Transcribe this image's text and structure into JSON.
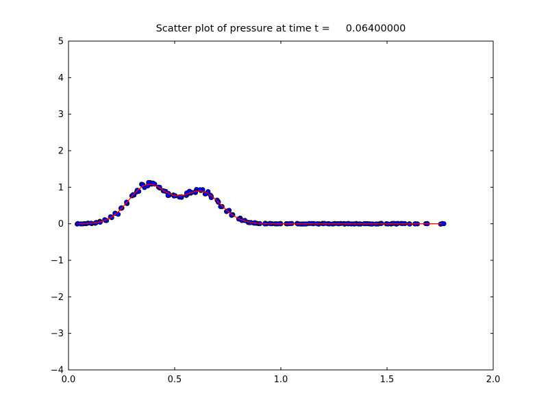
{
  "window": {
    "background": "#ffffff"
  },
  "chart_data": {
    "type": "scatter",
    "title": "Scatter plot of pressure at time t =     0.06400000",
    "xlabel": "",
    "ylabel": "",
    "grid": false,
    "legend": null,
    "xlim": [
      0.0,
      2.0
    ],
    "ylim": [
      -4,
      5
    ],
    "xticks": {
      "values": [
        0.0,
        0.5,
        1.0,
        1.5,
        2.0
      ],
      "labels": [
        "0.0",
        "0.5",
        "1.0",
        "1.5",
        "2.0"
      ]
    },
    "yticks": {
      "values": [
        -4,
        -3,
        -2,
        -1,
        0,
        1,
        2,
        3,
        4,
        5
      ],
      "labels": [
        "−4",
        "−3",
        "−2",
        "−1",
        "0",
        "1",
        "2",
        "3",
        "4",
        "5"
      ]
    },
    "marker_color": "#0000ff",
    "marker_edge_color": "#000000",
    "line_color": "#ff0000",
    "x": [
      0.05,
      0.075,
      0.1,
      0.125,
      0.15,
      0.175,
      0.2,
      0.225,
      0.25,
      0.275,
      0.3,
      0.325,
      0.35,
      0.375,
      0.4,
      0.425,
      0.45,
      0.475,
      0.5,
      0.525,
      0.55,
      0.575,
      0.6,
      0.625,
      0.65,
      0.675,
      0.7,
      0.725,
      0.75,
      0.775,
      0.8,
      0.825,
      0.85,
      0.875,
      0.9,
      0.925,
      0.95,
      0.975,
      1.0,
      1.025,
      1.05,
      1.075,
      1.1,
      1.125,
      1.15,
      1.175,
      1.2,
      1.225,
      1.25,
      1.275,
      1.3,
      1.325,
      1.35,
      1.375,
      1.4,
      1.425,
      1.45,
      1.475,
      1.5,
      1.525,
      1.55,
      1.575,
      1.6,
      1.64,
      1.69,
      1.76
    ],
    "y": [
      0.002,
      0.005,
      0.012,
      0.026,
      0.053,
      0.099,
      0.173,
      0.28,
      0.421,
      0.587,
      0.762,
      0.919,
      1.031,
      1.082,
      1.065,
      0.996,
      0.902,
      0.816,
      0.766,
      0.761,
      0.797,
      0.85,
      0.891,
      0.896,
      0.851,
      0.756,
      0.626,
      0.482,
      0.345,
      0.23,
      0.142,
      0.082,
      0.044,
      0.022,
      0.01,
      0.004,
      0.002,
      0.001,
      0.0,
      0.0,
      0.0,
      0.0,
      0.0,
      0.0,
      0.0,
      0.0,
      0.0,
      0.0,
      0.0,
      0.0,
      0.0,
      0.0,
      0.0,
      0.0,
      0.0,
      0.0,
      0.0,
      0.0,
      0.0,
      0.0,
      0.0,
      0.0,
      0.0,
      0.0,
      0.0,
      0.0
    ]
  }
}
